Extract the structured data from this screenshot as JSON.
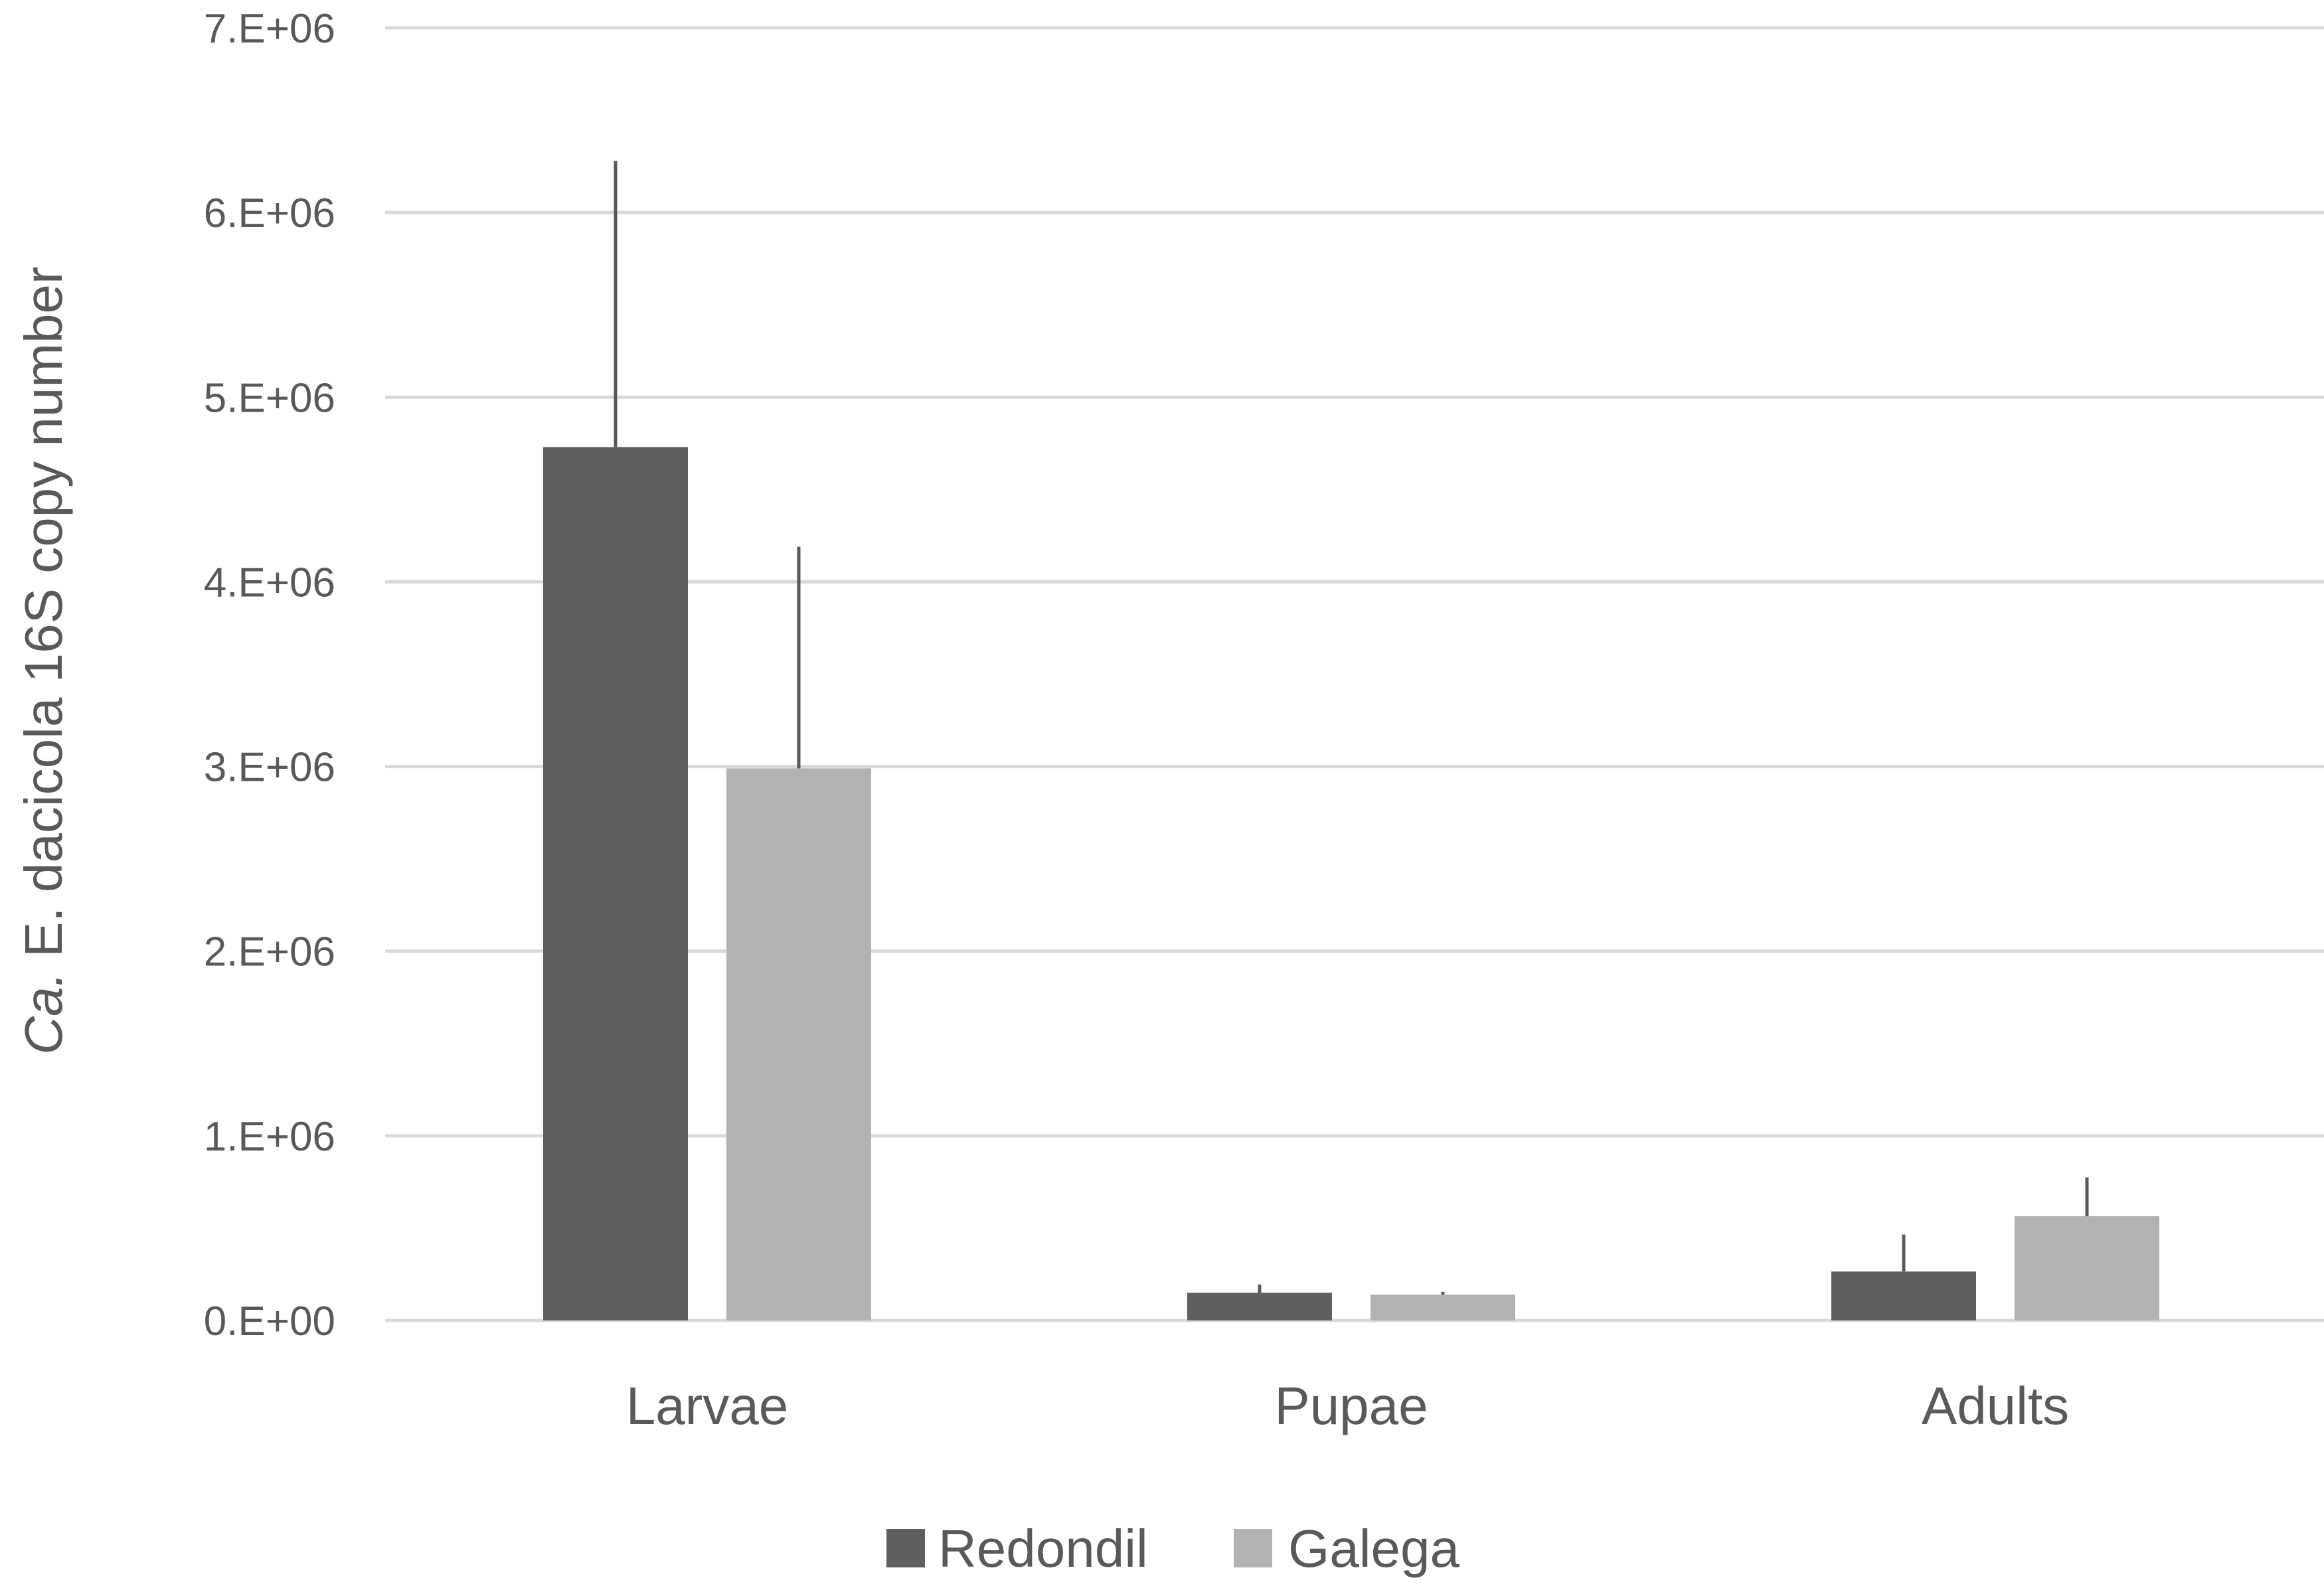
{
  "chart_data": {
    "type": "bar",
    "categories": [
      "Larvae",
      "Pupae",
      "Adults"
    ],
    "series": [
      {
        "name": "Redondil",
        "color": "#5f5f5f",
        "values": [
          4730000,
          150000,
          265000
        ],
        "errors": [
          1550000,
          45000,
          200000
        ]
      },
      {
        "name": "Galega",
        "color": "#b2b2b2",
        "values": [
          2990000,
          140000,
          565000
        ],
        "errors": [
          1200000,
          15000,
          210000
        ]
      }
    ],
    "ylabel_italic": "Ca.",
    "ylabel_rest": " E. dacicola 16S copy number",
    "ylim": [
      0,
      7000000
    ],
    "yticks": [
      0,
      1000000,
      2000000,
      3000000,
      4000000,
      5000000,
      6000000,
      7000000
    ],
    "ytick_labels": [
      "0.E+00",
      "1.E+06",
      "2.E+06",
      "3.E+06",
      "4.E+06",
      "5.E+06",
      "6.E+06",
      "7.E+06"
    ],
    "grid": true,
    "legend_position": "bottom",
    "grid_color": "#d9d9d9",
    "error_bar_color": "#595959"
  }
}
